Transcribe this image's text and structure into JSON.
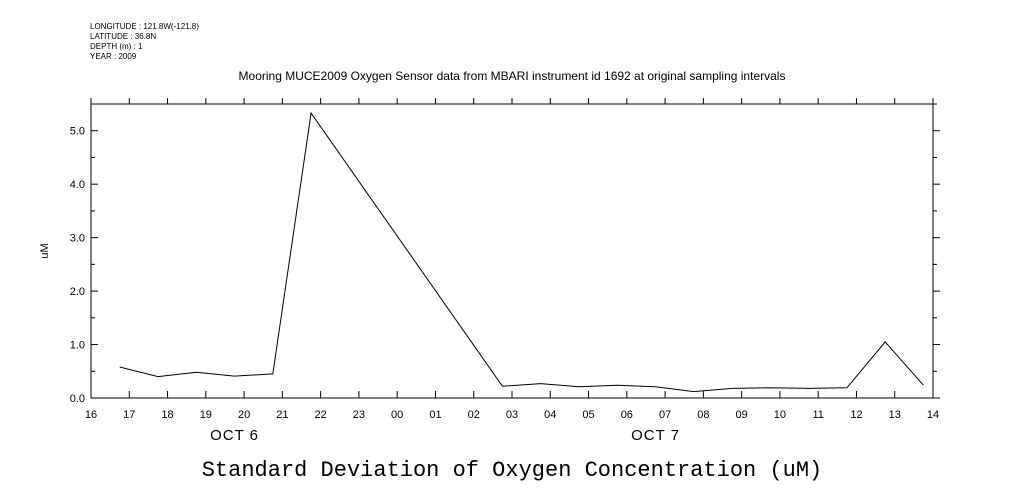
{
  "meta": {
    "longitude": "LONGITUDE : 121.8W(-121.8)",
    "latitude": "LATITUDE : 36.8N",
    "depth": "DEPTH (m) : 1",
    "year": "YEAR : 2009"
  },
  "chart_data": {
    "type": "line",
    "title": "Mooring MUCE2009 Oxygen Sensor data from MBARI instrument id 1692 at original sampling intervals",
    "xlabel": "Standard Deviation of Oxygen Concentration (uM)",
    "ylabel": "uM",
    "xlim": [
      16,
      38
    ],
    "ylim": [
      0,
      5.5
    ],
    "x_tick_labels": [
      "16",
      "17",
      "18",
      "19",
      "20",
      "21",
      "22",
      "23",
      "00",
      "01",
      "02",
      "03",
      "04",
      "05",
      "06",
      "07",
      "08",
      "09",
      "10",
      "11",
      "12",
      "13",
      "14"
    ],
    "y_ticks": [
      0.0,
      1.0,
      2.0,
      3.0,
      4.0,
      5.0
    ],
    "y_tick_labels": [
      "0.0",
      "1.0",
      "2.0",
      "3.0",
      "4.0",
      "5.0"
    ],
    "date_labels": [
      {
        "text": "OCT  6",
        "x": 19.75
      },
      {
        "text": "OCT  7",
        "x": 30.75
      }
    ],
    "series": [
      {
        "name": "Standard Deviation of Oxygen Concentration",
        "x": [
          16.75,
          17.75,
          18.75,
          19.75,
          20.75,
          21.75,
          26.75,
          27.75,
          28.75,
          29.75,
          30.75,
          31.75,
          32.75,
          33.75,
          34.75,
          35.75,
          36.75,
          37.75
        ],
        "y": [
          0.58,
          0.4,
          0.48,
          0.41,
          0.45,
          5.33,
          0.22,
          0.27,
          0.21,
          0.24,
          0.21,
          0.12,
          0.18,
          0.19,
          0.18,
          0.19,
          1.05,
          0.24
        ]
      }
    ]
  }
}
